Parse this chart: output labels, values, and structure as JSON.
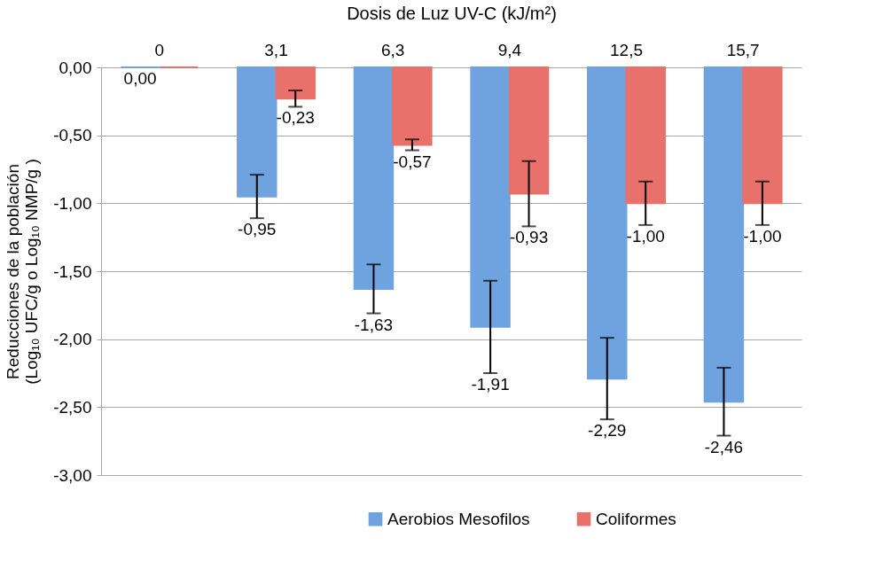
{
  "chart_data": {
    "type": "bar",
    "xlabel": "Dosis de Luz UV-C (kJ/m²)",
    "ylabel": "Reducciones de la población\n(Log₁₀ UFC/g o Log₁₀ NMP/g )",
    "categories": [
      "0",
      "3,1",
      "6,3",
      "9,4",
      "12,5",
      "15,7"
    ],
    "series": [
      {
        "name": "Aerobios Mesofilos",
        "color": "#6fa3e0",
        "values": [
          0.0,
          -0.95,
          -1.63,
          -1.91,
          -2.29,
          -2.46
        ],
        "errors": [
          null,
          0.16,
          0.18,
          0.34,
          0.3,
          0.25
        ],
        "value_labels": [
          "0,00",
          "-0,95",
          "-1,63",
          "-1,91",
          "-2,29",
          "-2,46"
        ]
      },
      {
        "name": "Coliformes",
        "color": "#e8716b",
        "values": [
          0.0,
          -0.23,
          -0.57,
          -0.93,
          -1.0,
          -1.0
        ],
        "errors": [
          null,
          0.06,
          0.04,
          0.24,
          0.16,
          0.16
        ],
        "value_labels": [
          null,
          "-0,23",
          "-0,57",
          "-0,93",
          "-1,00",
          "-1,00"
        ]
      }
    ],
    "ylim": [
      -3.0,
      0.0
    ],
    "yticks": [
      {
        "value": 0,
        "label": "0,00"
      },
      {
        "value": -0.5,
        "label": "-0,50"
      },
      {
        "value": -1.0,
        "label": "-1,00"
      },
      {
        "value": -1.5,
        "label": "-1,50"
      },
      {
        "value": -2.0,
        "label": "-2,00"
      },
      {
        "value": -2.5,
        "label": "-2,50"
      },
      {
        "value": -3.0,
        "label": "-3,00"
      }
    ],
    "grid": "y",
    "legend": "bottom"
  }
}
